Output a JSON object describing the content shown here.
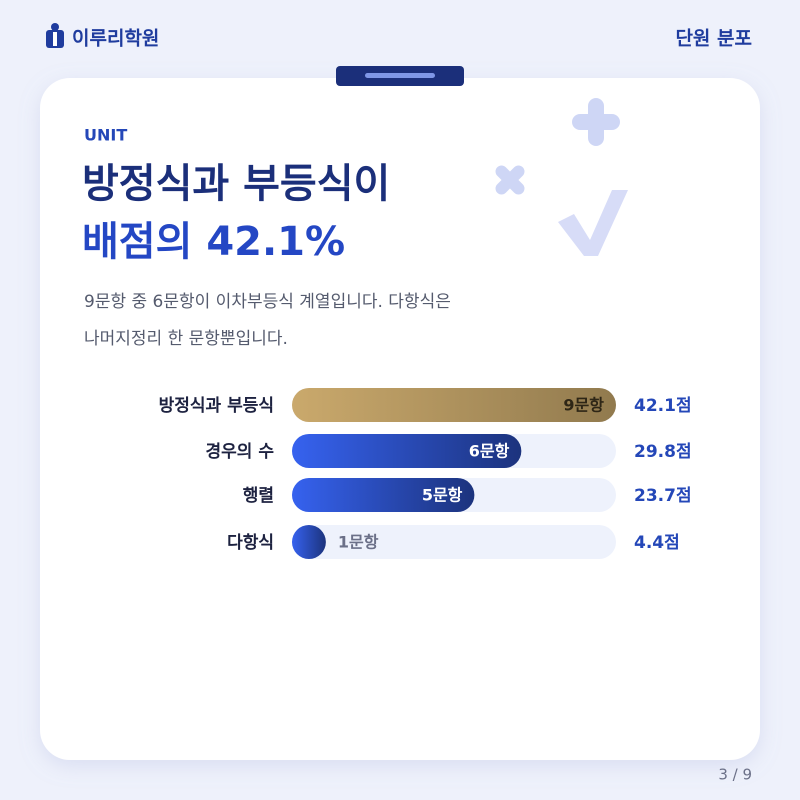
{
  "header": {
    "brand": "이루리학원",
    "section": "단원 분포"
  },
  "card": {
    "eyebrow": "UNIT",
    "title_line1": "방정식과 부등식이",
    "title_line2": "배점의 42.1%",
    "description_line1": "9문항 중 6문항이 이차부등식 계열입니다. 다항식은",
    "description_line2": "나머지정리 한 문항뿐입니다."
  },
  "chart_data": {
    "type": "bar",
    "orientation": "horizontal",
    "categories": [
      "방정식과 부등식",
      "경우의 수",
      "행렬",
      "다항식"
    ],
    "values": [
      42.1,
      29.8,
      23.7,
      4.4
    ],
    "value_labels": [
      "42.1점",
      "29.8점",
      "23.7점",
      "4.4점"
    ],
    "counts": [
      9,
      6,
      5,
      1
    ],
    "count_labels": [
      "9문항",
      "6문항",
      "5문항",
      "1문항"
    ],
    "colors": [
      "#caa96c",
      "#2f55d0",
      "#2f55d0",
      "#2f55d0"
    ],
    "xlim": [
      0,
      42.1
    ]
  },
  "footer": {
    "page": "3 / 9"
  }
}
